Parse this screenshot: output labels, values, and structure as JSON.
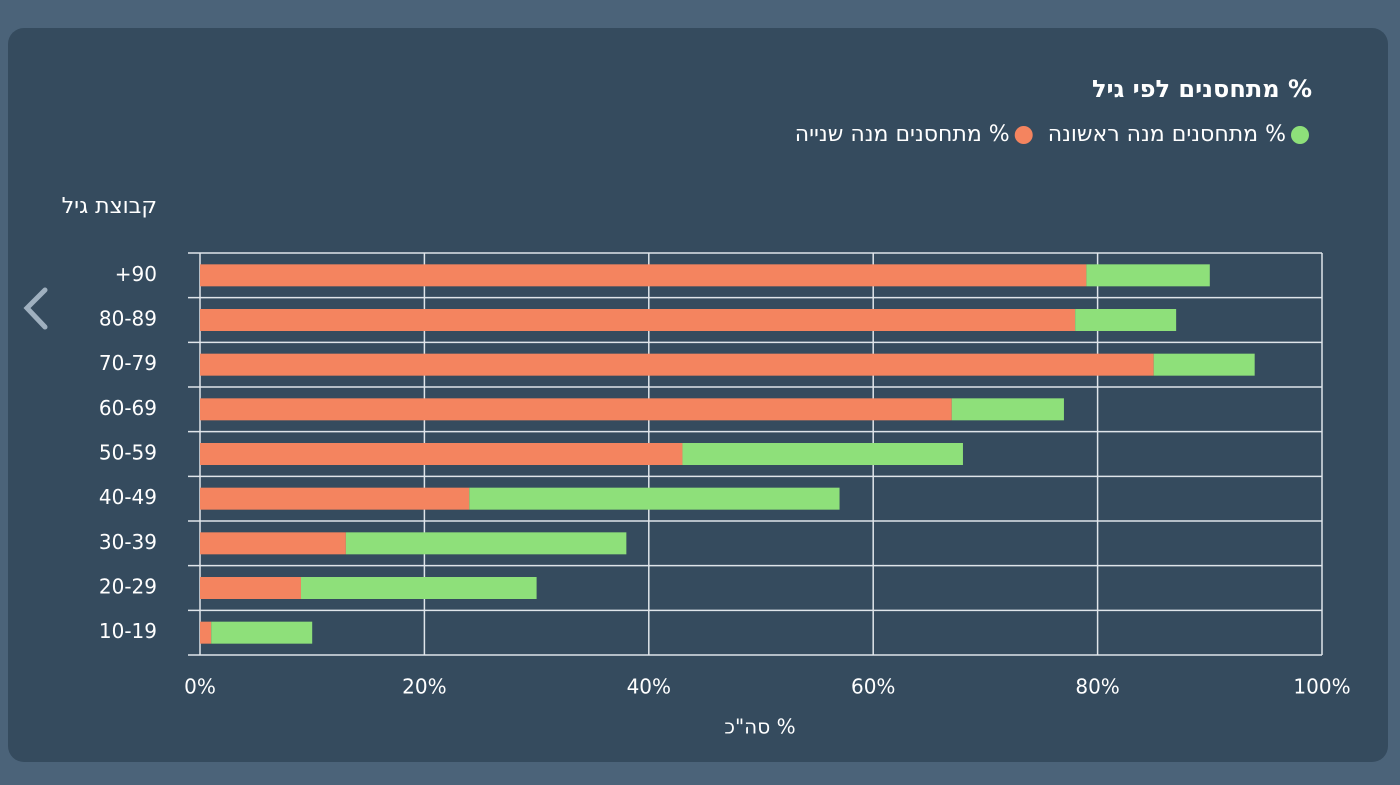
{
  "chart_data": {
    "type": "bar",
    "orientation": "horizontal",
    "stacked": true,
    "title": "% מתחסנים לפי גיל",
    "y_label": "קבוצת גיל",
    "x_label": "% סה\"כ",
    "categories": [
      "+90",
      "80-89",
      "70-79",
      "60-69",
      "50-59",
      "40-49",
      "30-39",
      "20-29",
      "10-19"
    ],
    "series": [
      {
        "name": "% מתחסנים מנה שנייה",
        "color": "#f4845f",
        "values": [
          79,
          78,
          85,
          67,
          43,
          24,
          13,
          9,
          1
        ]
      },
      {
        "name": "% מתחסנים מנה ראשונה",
        "color": "#8ee07a",
        "values": [
          11,
          9,
          9,
          10,
          25,
          33,
          25,
          21,
          9
        ]
      }
    ],
    "legend_order": [
      1,
      0
    ],
    "xlim": [
      0,
      100
    ],
    "xticks": [
      {
        "value": 0,
        "label": "0%"
      },
      {
        "value": 20,
        "label": "20%"
      },
      {
        "value": 40,
        "label": "40%"
      },
      {
        "value": 60,
        "label": "60%"
      },
      {
        "value": 80,
        "label": "80%"
      },
      {
        "value": 100,
        "label": "100%"
      }
    ],
    "grid": true
  }
}
